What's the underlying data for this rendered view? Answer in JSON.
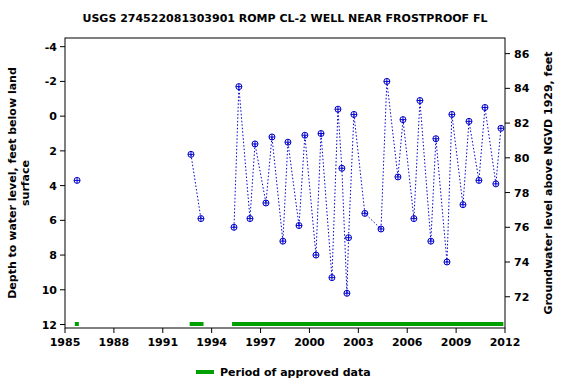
{
  "chart_data": {
    "type": "line",
    "title": "USGS 274522081303901 ROMP CL-2 WELL NEAR FROSTPROOF FL",
    "y_label": [
      "Depth to water level, feet below land",
      "surface"
    ],
    "y2_label": "Groundwater level above NGVD 1929, feet",
    "xlim": [
      1985,
      2012
    ],
    "xticks": [
      1985,
      1988,
      1991,
      1994,
      1997,
      2000,
      2003,
      2006,
      2009,
      2012
    ],
    "ylim": [
      12.2,
      -4.5
    ],
    "yticks": [
      -4,
      -2,
      0,
      2,
      4,
      6,
      8,
      10,
      12
    ],
    "y2lim": [
      70.2,
      86.9
    ],
    "y2ticks": [
      72,
      74,
      76,
      78,
      80,
      82,
      84,
      86
    ],
    "series": [
      {
        "color": "#0000cc",
        "marker": "circle-plus",
        "line_style": "dotted",
        "x": [
          1985.74,
          null,
          1992.73,
          1993.34,
          null,
          1995.37,
          1995.67,
          1996.35,
          1996.66,
          1997.33,
          1997.7,
          1998.37,
          1998.68,
          1999.36,
          1999.72,
          2000.4,
          2000.71,
          2001.38,
          2001.75,
          2001.99,
          2002.3,
          2002.4,
          2002.73,
          2003.4,
          2004.39,
          2004.75,
          2005.43,
          2005.74,
          2006.41,
          2006.78,
          2007.45,
          2007.76,
          2008.44,
          2008.74,
          2009.42,
          2009.79,
          2010.4,
          2010.77,
          2011.44,
          2011.75
        ],
        "values": [
          3.7,
          null,
          2.2,
          5.9,
          null,
          6.4,
          -1.7,
          5.9,
          1.6,
          5.0,
          1.2,
          7.2,
          1.5,
          6.3,
          1.1,
          8.0,
          1.0,
          9.3,
          -0.4,
          3.0,
          10.2,
          7.0,
          -0.1,
          5.6,
          6.5,
          -2.0,
          3.5,
          0.2,
          5.9,
          -0.9,
          7.2,
          1.3,
          8.4,
          -0.1,
          5.1,
          0.3,
          3.7,
          -0.5,
          3.9,
          0.7
        ]
      }
    ],
    "approved_periods": {
      "name": "Period of approved data",
      "color": "#00a000",
      "start": [
        1985.6,
        1992.65,
        1995.25
      ],
      "end": [
        1985.85,
        1993.5,
        2011.9
      ]
    },
    "legend": "bottom"
  }
}
